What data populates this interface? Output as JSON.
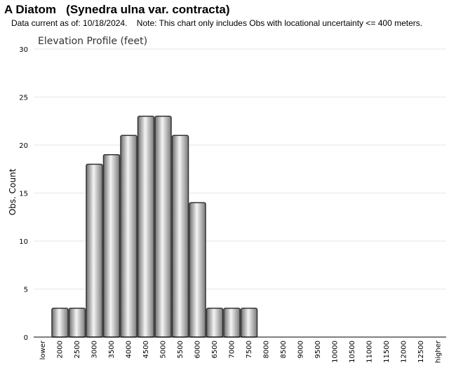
{
  "header": {
    "title": "A Diatom   (Synedra ulna var. contracta)",
    "note": "Data current as of: 10/18/2024.    Note: This chart only includes Obs with locational uncertainty <= 400 meters."
  },
  "chart_data": {
    "type": "bar",
    "title": "Elevation Profile (feet)",
    "xlabel": "",
    "ylabel": "Obs. Count",
    "ylim": [
      0,
      30
    ],
    "yticks": [
      0,
      5,
      10,
      15,
      20,
      25,
      30
    ],
    "grid": true,
    "categories": [
      "lower",
      "2000",
      "2500",
      "3000",
      "3500",
      "4000",
      "4500",
      "5000",
      "5500",
      "6000",
      "6500",
      "7000",
      "7500",
      "8000",
      "8500",
      "9000",
      "9500",
      "10000",
      "10500",
      "11000",
      "11500",
      "12000",
      "12500",
      "higher"
    ],
    "values": [
      0,
      3,
      3,
      18,
      19,
      21,
      23,
      23,
      21,
      14,
      3,
      3,
      3,
      0,
      0,
      0,
      0,
      0,
      0,
      0,
      0,
      0,
      0,
      0
    ],
    "colors": {
      "bar_light": "#f2f2f2",
      "bar_dark": "#8a8a8a",
      "bar_stroke": "#333333",
      "grid": "#e6e6e6"
    }
  }
}
